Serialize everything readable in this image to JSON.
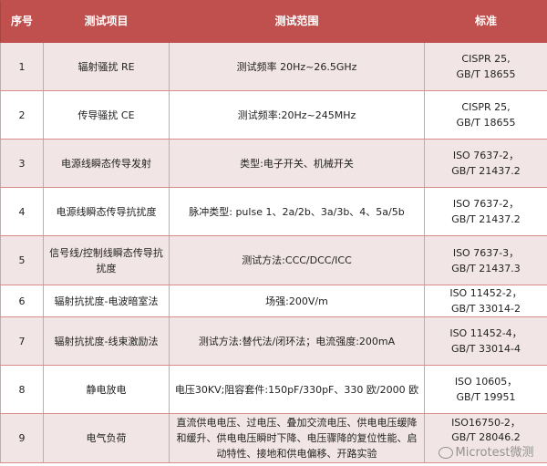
{
  "header": {
    "index": "序号",
    "item": "测试项目",
    "range": "测试范围",
    "standard": "标准"
  },
  "rows": [
    {
      "index": "1",
      "item": "辐射骚扰 RE",
      "range": "测试频率 20Hz~26.5GHz",
      "standard_1": "CISPR 25,",
      "standard_2": "GB/T 18655"
    },
    {
      "index": "2",
      "item": "传导骚扰 CE",
      "range": "测试频率:20Hz~245MHz",
      "standard_1": "CISPR 25,",
      "standard_2": "GB/T 18655"
    },
    {
      "index": "3",
      "item": "电源线瞬态传导发射",
      "range": "类型:电子开关、机械开关",
      "standard_1": "ISO 7637-2，",
      "standard_2": "GB/T 21437.2"
    },
    {
      "index": "4",
      "item": "电源线瞬态传导抗扰度",
      "range": "脉冲类型: pulse 1、2a/2b、3a/3b、4、5a/5b",
      "standard_1": "ISO 7637-2，",
      "standard_2": "GB/T 21437.2"
    },
    {
      "index": "5",
      "item": "信号线/控制线瞬态传导抗扰度",
      "range": "测试方法:CCC/DCC/ICC",
      "standard_1": "ISO 7637-3，",
      "standard_2": "GB/T 21437.3"
    },
    {
      "index": "6",
      "item": "辐射抗扰度-电波暗室法",
      "range": "场强:200V/m",
      "standard_1": "ISO 11452-2，",
      "standard_2": "GB/T 33014-2"
    },
    {
      "index": "7",
      "item": "辐射抗扰度-线束激励法",
      "range": "测试方法:替代法/闭环法；电流强度:200mA",
      "standard_1": "ISO 11452-4，",
      "standard_2": "GB/T 33014-4"
    },
    {
      "index": "8",
      "item": "静电放电",
      "range": "电压30KV;阻容套件:150pF/330pF、330 欧/2000 欧",
      "standard_1": "ISO 10605，",
      "standard_2": "GB/T 19951"
    },
    {
      "index": "9",
      "item": "电气负荷",
      "range": "直流供电电压、过电压、叠加交流电压、供电电压缓降和缓升、供电电压瞬时下降、电压骤降的复位性能、启动特性、接地和供电偏移、开路实验",
      "standard_1": "ISO16750-2，",
      "standard_2": "GB/T 28046.2"
    }
  ],
  "watermark": "Microtest微测",
  "colors": {
    "header_bg": "#c0504d",
    "row_tint": "#f2e5e5",
    "border": "#d98b8a"
  }
}
